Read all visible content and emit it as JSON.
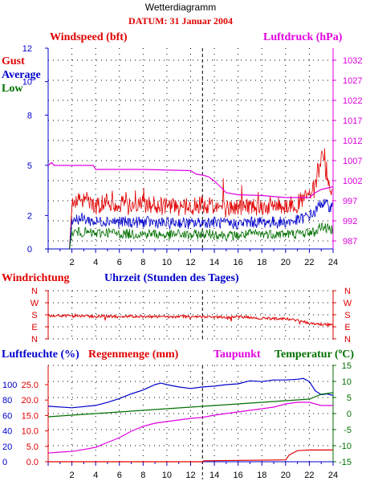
{
  "header": {
    "title": "Wetterdiagramm",
    "date": "DATUM: 31 Januar 2004"
  },
  "colors": {
    "red": "#e00000",
    "blue": "#0000cc",
    "green": "#007000",
    "magenta": "#e000e0"
  },
  "labels": {
    "windspeed": "Windspeed (bft)",
    "luftdruck": "Luftdruck (hPa)",
    "gust": "Gust",
    "average": "Average",
    "low": "Low",
    "windrichtung": "Windrichtung",
    "uhrzeit": "Uhrzeit (Stunden des Tages)",
    "luftfeuchte": "Luftfeuchte (%)",
    "regenmenge": "Regenmenge (mm)",
    "taupunkt": "Taupunkt",
    "temperatur": "Temperatur (",
    "temperatur_unit": "C)",
    "degree_symbol": "o"
  },
  "chart_data": [
    {
      "type": "line",
      "title": "Windspeed (bft)",
      "xlabel": "",
      "ylabel": "Windspeed (bft)",
      "xlim": [
        0,
        24
      ],
      "ylim": [
        0,
        12
      ],
      "x_ticks": [
        2,
        4,
        6,
        8,
        10,
        12,
        14,
        16,
        18,
        20,
        22,
        24
      ],
      "y_ticks": [
        0,
        2,
        5,
        8,
        10,
        12
      ],
      "y2label": "Luftdruck (hPa)",
      "y2lim": [
        985,
        1035
      ],
      "y2_ticks": [
        987,
        992,
        997,
        1002,
        1007,
        1012,
        1017,
        1022,
        1027,
        1032
      ],
      "legend": [
        "Gust",
        "Average",
        "Low"
      ],
      "series": [
        {
          "name": "Gust",
          "axis": "left",
          "x": [
            1.8,
            2,
            3,
            4,
            5,
            6,
            7,
            8,
            9,
            10,
            11,
            12,
            13,
            14,
            15,
            16,
            17,
            18,
            19,
            20,
            21,
            22,
            22.5,
            23,
            23.5,
            24
          ],
          "values": [
            0,
            2.5,
            3.0,
            2.5,
            2.8,
            2.7,
            2.5,
            2.7,
            2.6,
            2.5,
            2.5,
            2.5,
            2.7,
            2.6,
            2.4,
            2.5,
            2.6,
            2.5,
            2.6,
            2.6,
            2.7,
            3.2,
            3.6,
            5.5,
            4.0,
            3.5
          ]
        },
        {
          "name": "Average",
          "axis": "left",
          "x": [
            1.8,
            2,
            3,
            4,
            5,
            6,
            7,
            8,
            9,
            10,
            11,
            12,
            13,
            14,
            15,
            16,
            17,
            18,
            19,
            20,
            21,
            22,
            22.5,
            23,
            23.5,
            24
          ],
          "values": [
            0,
            1.8,
            1.8,
            1.6,
            1.7,
            1.6,
            1.6,
            1.6,
            1.6,
            1.5,
            1.6,
            1.5,
            1.6,
            1.6,
            1.5,
            1.5,
            1.6,
            1.6,
            1.6,
            1.6,
            1.7,
            2.0,
            2.2,
            2.8,
            2.6,
            2.5
          ]
        },
        {
          "name": "Low",
          "axis": "left",
          "x": [
            1.8,
            2,
            3,
            4,
            5,
            6,
            7,
            8,
            9,
            10,
            11,
            12,
            13,
            14,
            15,
            16,
            17,
            18,
            19,
            20,
            21,
            22,
            22.5,
            23,
            23.5,
            24
          ],
          "values": [
            0,
            1.0,
            1.0,
            0.9,
            1.0,
            0.9,
            0.9,
            0.9,
            0.9,
            0.8,
            0.9,
            0.8,
            0.9,
            0.9,
            0.8,
            0.8,
            0.9,
            0.9,
            0.9,
            0.9,
            0.9,
            1.0,
            1.0,
            1.4,
            1.2,
            1.2
          ]
        },
        {
          "name": "Luftdruck",
          "axis": "right",
          "x": [
            0,
            0.3,
            0.5,
            1.5,
            3.8,
            4,
            8,
            12,
            12.5,
            13,
            13.5,
            14,
            14.5,
            15,
            16,
            18,
            20,
            22,
            22.5,
            23,
            24
          ],
          "values": [
            1005.8,
            1006.5,
            1005.8,
            1005.8,
            1005.8,
            1004.8,
            1004.8,
            1004.5,
            1003.6,
            1003.4,
            1003.0,
            1001.9,
            1000.5,
            999.0,
            998.5,
            998.3,
            997.8,
            997.8,
            999.0,
            999.8,
            1000.5
          ]
        }
      ]
    },
    {
      "type": "line",
      "title": "Windrichtung",
      "xlabel": "Uhrzeit (Stunden des Tages)",
      "xlim": [
        0,
        24
      ],
      "y_ticks": [
        "N",
        "W",
        "S",
        "E",
        "N"
      ],
      "series": [
        {
          "name": "Windrichtung",
          "x": [
            0,
            1,
            2,
            3,
            4,
            5,
            6,
            7,
            8,
            9,
            10,
            11,
            12,
            13,
            14,
            15,
            16,
            17,
            18,
            19,
            20,
            21,
            22,
            23,
            24
          ],
          "values": [
            190,
            185,
            190,
            188,
            192,
            190,
            195,
            190,
            192,
            195,
            195,
            195,
            190,
            195,
            195,
            200,
            195,
            200,
            205,
            210,
            210,
            220,
            240,
            250,
            255
          ]
        }
      ]
    },
    {
      "type": "line",
      "xlim": [
        0,
        24
      ],
      "x_ticks": [
        2,
        4,
        6,
        8,
        10,
        12,
        14,
        16,
        18,
        20,
        22,
        24
      ],
      "y_left_outer_ticks": [
        0,
        20,
        40,
        60,
        80,
        100
      ],
      "y_left_inner_ticks": [
        "0.0",
        "5.0",
        "10.0",
        "15.0",
        "20.0",
        "25.0"
      ],
      "y_right_ticks": [
        -15,
        -10,
        -5,
        0,
        5,
        10,
        15
      ],
      "humidity_range": [
        0,
        125
      ],
      "rain_range": [
        0,
        31.25
      ],
      "temp_range": [
        -15,
        15
      ],
      "series": [
        {
          "name": "Luftfeuchte (%)",
          "axis": "humidity",
          "x": [
            0,
            2,
            4,
            5,
            6,
            7,
            8,
            9,
            9.5,
            10,
            11,
            12,
            13,
            14,
            15,
            16,
            17,
            18,
            19,
            20,
            21,
            21.5,
            22,
            22.5,
            23,
            23.5,
            24
          ],
          "values": [
            72,
            70,
            73,
            77,
            82,
            88,
            93,
            100,
            102,
            100,
            97,
            95,
            97,
            98,
            100,
            101,
            105,
            104,
            106,
            106,
            107,
            108,
            104,
            92,
            87,
            88,
            86
          ]
        },
        {
          "name": "Regenmenge (mm)",
          "axis": "rain",
          "x": [
            0,
            13.1,
            13.1,
            20,
            20.3,
            21,
            22,
            24
          ],
          "values": [
            0,
            0,
            0.3,
            0.6,
            2.2,
            3.6,
            3.8,
            3.8
          ]
        },
        {
          "name": "Taupunkt",
          "axis": "temp",
          "x": [
            0,
            1,
            2,
            3,
            4,
            5,
            6,
            7,
            8,
            9,
            10,
            11,
            12,
            13,
            14,
            15,
            16,
            17,
            18,
            19,
            20,
            21,
            22,
            23,
            24
          ],
          "values": [
            -12.3,
            -12.0,
            -11.8,
            -11.2,
            -10.5,
            -9.0,
            -7.5,
            -5.5,
            -4.0,
            -3.0,
            -2.5,
            -2.0,
            -1.5,
            -1.2,
            -0.5,
            0.0,
            0.5,
            1.0,
            1.5,
            2.0,
            3.0,
            3.5,
            3.5,
            2.5,
            2.5
          ]
        },
        {
          "name": "Temperatur",
          "axis": "temp",
          "x": [
            0,
            2,
            4,
            6,
            8,
            10,
            12,
            14,
            16,
            18,
            20,
            22,
            23,
            24
          ],
          "values": [
            -1.0,
            -0.5,
            0.0,
            0.5,
            1.0,
            1.5,
            2.0,
            2.5,
            3.0,
            3.5,
            4.0,
            4.5,
            6.0,
            6.5
          ]
        }
      ]
    }
  ]
}
